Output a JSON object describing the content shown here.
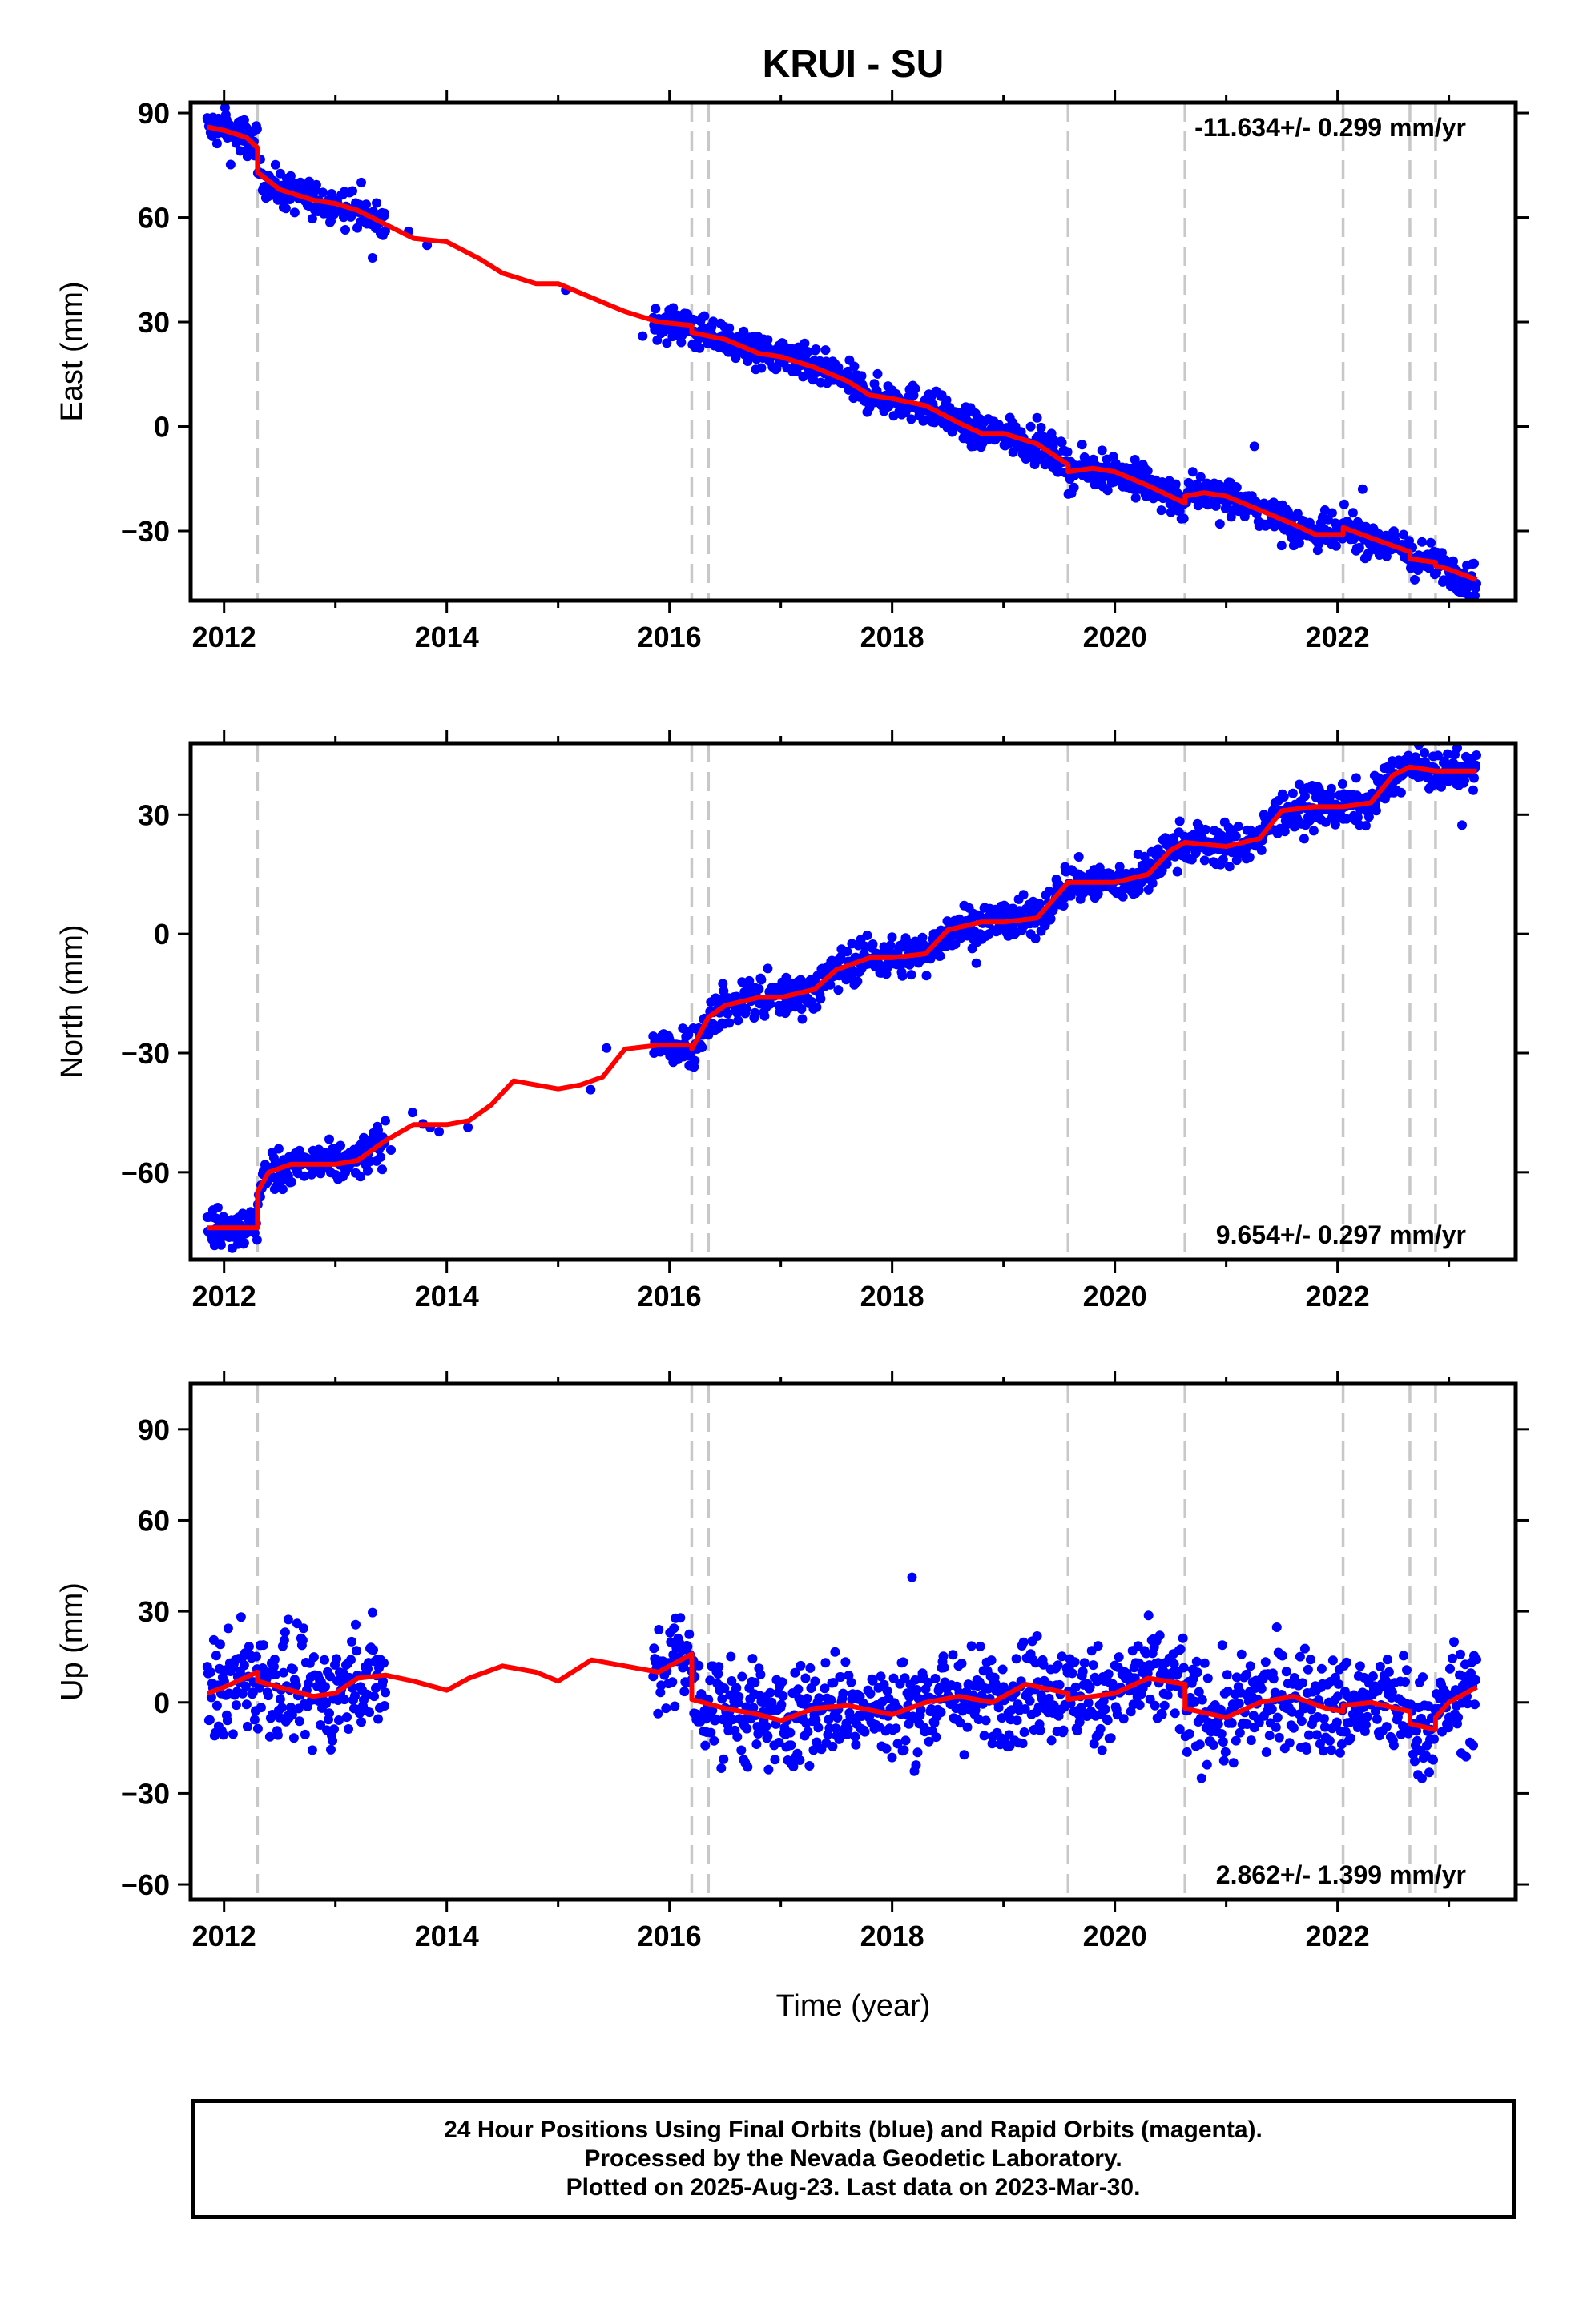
{
  "chart_data": {
    "type": "scatter",
    "title": "KRUI - SU",
    "xlabel": "Time (year)",
    "x_ticks": [
      2012,
      2014,
      2016,
      2018,
      2020,
      2022
    ],
    "xlim": [
      2011.7,
      2023.6
    ],
    "equipment_change_epochs": [
      2012.3,
      2016.2,
      2016.35,
      2019.58,
      2020.63,
      2022.05,
      2022.65,
      2022.88
    ],
    "data_gaps": [
      [
        2013.45,
        2015.85
      ]
    ],
    "panels": [
      {
        "name": "east",
        "ylabel": "East (mm)",
        "ylim": [
          -50,
          93
        ],
        "y_ticks": [
          90,
          60,
          30,
          0,
          -30
        ],
        "rate_label": "-11.634+/- 0.299 mm/yr",
        "rate_position": "top-right",
        "series": [
          {
            "name": "Final Orbits",
            "color": "#0000ff",
            "style": "points"
          },
          {
            "name": "Model fit",
            "color": "#ff0000",
            "style": "line",
            "x": [
              2011.85,
              2012.0,
              2012.2,
              2012.3,
              2012.3,
              2012.5,
              2012.8,
              2013.0,
              2013.2,
              2013.45,
              2013.7,
              2014.0,
              2014.3,
              2014.5,
              2014.8,
              2015.0,
              2015.3,
              2015.6,
              2015.9,
              2016.2,
              2016.2,
              2016.5,
              2016.8,
              2017.0,
              2017.3,
              2017.6,
              2017.8,
              2018.0,
              2018.3,
              2018.6,
              2018.8,
              2019.0,
              2019.3,
              2019.58,
              2019.58,
              2019.8,
              2020.0,
              2020.3,
              2020.63,
              2020.63,
              2020.8,
              2021.0,
              2021.3,
              2021.6,
              2021.8,
              2022.05,
              2022.05,
              2022.3,
              2022.65,
              2022.65,
              2022.88,
              2022.88,
              2023.0,
              2023.25
            ],
            "y": [
              86,
              85,
              83,
              80,
              73,
              68,
              65,
              64,
              62,
              58,
              54,
              53,
              48,
              44,
              41,
              41,
              37,
              33,
              30,
              29,
              27,
              25,
              21,
              20,
              17,
              13,
              9,
              8,
              6,
              1,
              -2,
              -2,
              -5,
              -11,
              -13,
              -12,
              -13,
              -17,
              -22,
              -20,
              -19,
              -20,
              -24,
              -28,
              -31,
              -31,
              -29,
              -32,
              -36,
              -38,
              -39,
              -40,
              -41,
              -44
            ]
          }
        ]
      },
      {
        "name": "north",
        "ylabel": "North (mm)",
        "ylim": [
          -82,
          48
        ],
        "y_ticks": [
          30,
          0,
          -30,
          -60
        ],
        "rate_label": "9.654+/- 0.297 mm/yr",
        "rate_position": "bottom-right",
        "series": [
          {
            "name": "Final Orbits",
            "color": "#0000ff",
            "style": "points"
          },
          {
            "name": "Model fit",
            "color": "#ff0000",
            "style": "line",
            "x": [
              2011.85,
              2012.0,
              2012.2,
              2012.3,
              2012.3,
              2012.4,
              2012.6,
              2012.8,
              2013.0,
              2013.2,
              2013.45,
              2013.7,
              2014.0,
              2014.2,
              2014.4,
              2014.6,
              2014.8,
              2015.0,
              2015.2,
              2015.4,
              2015.6,
              2015.9,
              2016.2,
              2016.2,
              2016.35,
              2016.5,
              2016.8,
              2017.0,
              2017.3,
              2017.5,
              2017.8,
              2018.0,
              2018.3,
              2018.5,
              2018.8,
              2019.0,
              2019.3,
              2019.58,
              2019.58,
              2019.8,
              2020.0,
              2020.3,
              2020.5,
              2020.63,
              2020.63,
              2021.0,
              2021.3,
              2021.5,
              2021.8,
              2022.05,
              2022.05,
              2022.3,
              2022.5,
              2022.65,
              2022.65,
              2022.88,
              2022.88,
              2023.25
            ],
            "y": [
              -74,
              -74,
              -74,
              -74,
              -65,
              -60,
              -58,
              -58,
              -58,
              -57,
              -52,
              -48,
              -48,
              -47,
              -43,
              -37,
              -38,
              -39,
              -38,
              -36,
              -29,
              -28,
              -28,
              -29,
              -21,
              -18,
              -16,
              -16,
              -14,
              -9,
              -6,
              -6,
              -5,
              1,
              3,
              3,
              4,
              13,
              13,
              13,
              13,
              15,
              21,
              23,
              23,
              22,
              24,
              31,
              32,
              32,
              32,
              33,
              40,
              42,
              42,
              41,
              41,
              41
            ]
          }
        ]
      },
      {
        "name": "up",
        "ylabel": "Up (mm)",
        "ylim": [
          -65,
          105
        ],
        "y_ticks": [
          90,
          60,
          30,
          0,
          -30,
          -60
        ],
        "rate_label": "2.862+/- 1.399 mm/yr",
        "rate_position": "bottom-right",
        "series": [
          {
            "name": "Final Orbits",
            "color": "#0000ff",
            "style": "points"
          },
          {
            "name": "Model fit",
            "color": "#ff0000",
            "style": "line",
            "x": [
              2011.85,
              2012.0,
              2012.3,
              2012.3,
              2012.6,
              2012.8,
              2013.0,
              2013.2,
              2013.45,
              2013.7,
              2014.0,
              2014.2,
              2014.5,
              2014.8,
              2015.0,
              2015.3,
              2015.6,
              2015.9,
              2016.2,
              2016.2,
              2016.5,
              2016.8,
              2017.0,
              2017.3,
              2017.6,
              2018.0,
              2018.3,
              2018.6,
              2018.9,
              2019.2,
              2019.58,
              2019.58,
              2019.8,
              2020.0,
              2020.3,
              2020.63,
              2020.63,
              2021.0,
              2021.3,
              2021.6,
              2021.9,
              2022.05,
              2022.05,
              2022.3,
              2022.65,
              2022.65,
              2022.88,
              2022.88,
              2023.0,
              2023.25
            ],
            "y": [
              3,
              5,
              10,
              7,
              4,
              2,
              3,
              8,
              9,
              7,
              4,
              8,
              12,
              10,
              7,
              14,
              12,
              10,
              16,
              1,
              -2,
              -4,
              -6,
              -2,
              -1,
              -4,
              0,
              2,
              0,
              6,
              3,
              1,
              2,
              3,
              8,
              6,
              -2,
              -5,
              0,
              2,
              -2,
              -3,
              -1,
              0,
              -3,
              -7,
              -9,
              -5,
              0,
              5
            ]
          }
        ]
      }
    ]
  },
  "footer": {
    "line1": "24 Hour Positions Using Final Orbits (blue) and Rapid Orbits (magenta).",
    "line2": "Processed by the Nevada Geodetic Laboratory.",
    "line3": "Plotted on 2025-Aug-23. Last data on 2023-Mar-30."
  }
}
